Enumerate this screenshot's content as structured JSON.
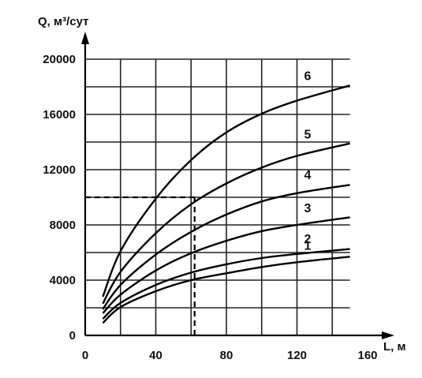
{
  "chart_data": {
    "type": "line",
    "ylabel": "Q, м³/сут",
    "xlabel": "L, м",
    "xlim": [
      0,
      160
    ],
    "ylim": [
      0,
      20000
    ],
    "x_ticks": [
      0,
      40,
      80,
      120,
      160
    ],
    "y_ticks": [
      0,
      4000,
      8000,
      12000,
      16000,
      20000
    ],
    "grid": true,
    "x": [
      10,
      20,
      40,
      60,
      80,
      100,
      120,
      150
    ],
    "series": [
      {
        "name": "1",
        "values": [
          900,
          2050,
          3200,
          4000,
          4500,
          4950,
          5300,
          5700
        ]
      },
      {
        "name": "2",
        "values": [
          1200,
          2350,
          3650,
          4550,
          5150,
          5600,
          5900,
          6250
        ]
      },
      {
        "name": "3",
        "values": [
          1600,
          2950,
          4700,
          5950,
          6850,
          7550,
          8000,
          8550
        ]
      },
      {
        "name": "4",
        "values": [
          1900,
          3650,
          5850,
          7500,
          8750,
          9700,
          10300,
          10900
        ]
      },
      {
        "name": "5",
        "values": [
          2300,
          4600,
          7400,
          9500,
          11000,
          12150,
          13000,
          13900
        ]
      },
      {
        "name": "6",
        "values": [
          2800,
          6100,
          9900,
          12700,
          14700,
          16050,
          17000,
          18100
        ]
      }
    ],
    "reference_point": {
      "x": 62,
      "y": 10000
    }
  }
}
